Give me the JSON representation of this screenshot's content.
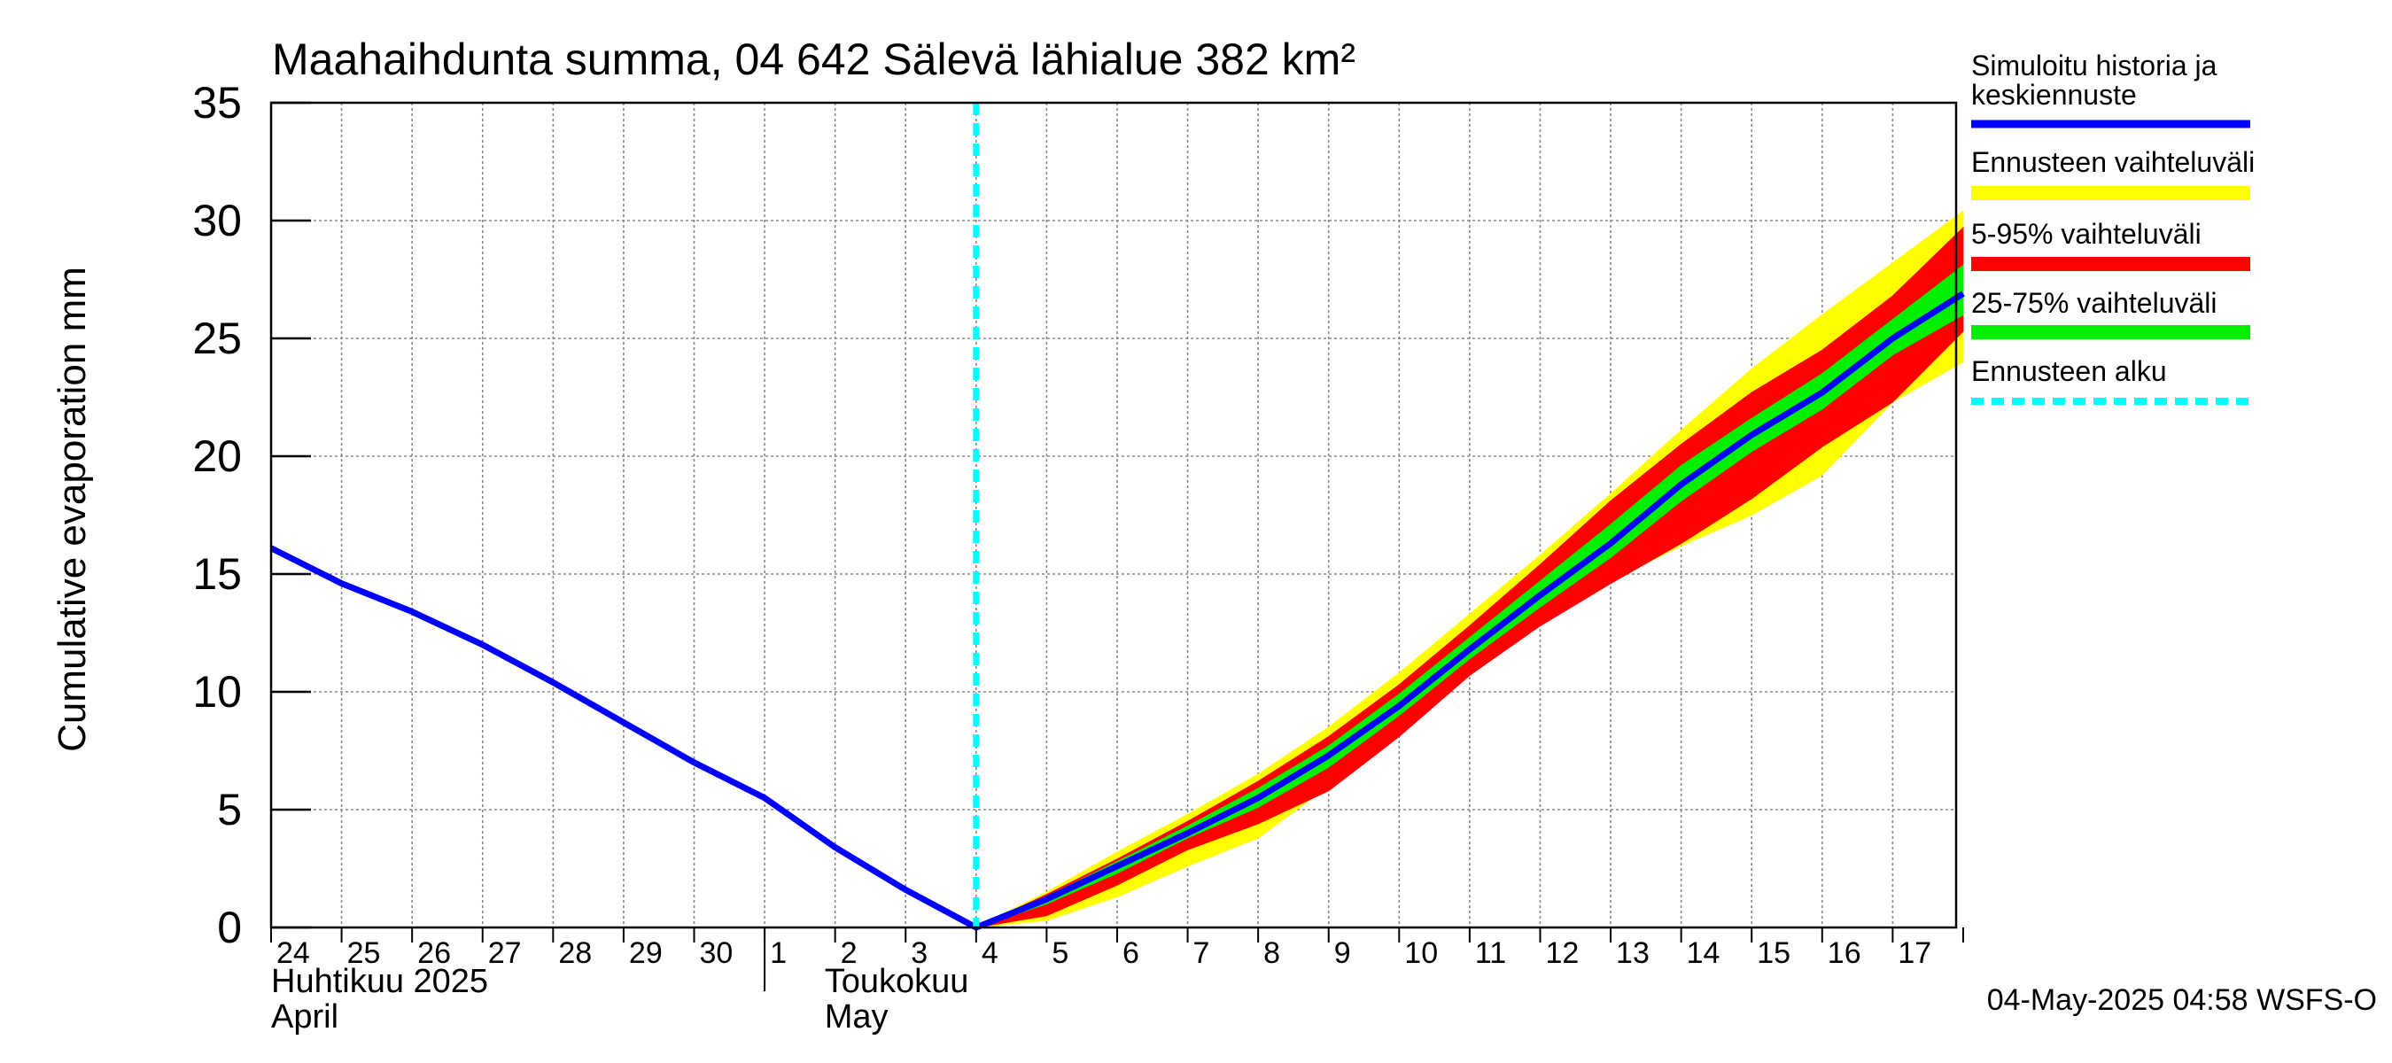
{
  "chart_data": {
    "type": "area",
    "title": "Maahaihdunta summa, 04 642 Sälevä lähialue 382 km²",
    "ylabel": "Cumulative evaporation   mm",
    "ylim": [
      0,
      35
    ],
    "yticks": [
      0,
      5,
      10,
      15,
      20,
      25,
      30,
      35
    ],
    "x_range": [
      "2025-04-24",
      "2025-05-17"
    ],
    "x_tick_labels": [
      "24",
      "25",
      "26",
      "27",
      "28",
      "29",
      "30",
      "1",
      "2",
      "3",
      "4",
      "5",
      "6",
      "7",
      "8",
      "9",
      "10",
      "11",
      "12",
      "13",
      "14",
      "15",
      "16",
      "17"
    ],
    "month_labels": [
      {
        "line1": "Huhtikuu  2025",
        "line2": "April"
      },
      {
        "line1": "Toukokuu",
        "line2": "May"
      }
    ],
    "grid": true,
    "forecast_start": "2025-05-04",
    "legend_position": "right",
    "legend": [
      {
        "label": "Simuloitu historia ja\nkeskiennuste",
        "color": "#0000ff",
        "style": "solid"
      },
      {
        "label": "Ennusteen vaihteluväli",
        "color": "#ffff00",
        "style": "solid"
      },
      {
        "label": "5-95% vaihteluväli",
        "color": "#ff0000",
        "style": "solid"
      },
      {
        "label": "25-75% vaihteluväli",
        "color": "#00ee00",
        "style": "solid"
      },
      {
        "label": "Ennusteen alku",
        "color": "#00ffff",
        "style": "dashed"
      }
    ],
    "x": [
      "2025-04-24",
      "2025-04-25",
      "2025-04-26",
      "2025-04-27",
      "2025-04-28",
      "2025-04-29",
      "2025-04-30",
      "2025-05-01",
      "2025-05-02",
      "2025-05-03",
      "2025-05-04",
      "2025-05-05",
      "2025-05-06",
      "2025-05-07",
      "2025-05-08",
      "2025-05-09",
      "2025-05-10",
      "2025-05-11",
      "2025-05-12",
      "2025-05-13",
      "2025-05-14",
      "2025-05-15",
      "2025-05-16",
      "2025-05-17",
      "2025-05-18"
    ],
    "series": [
      {
        "name": "Simuloitu historia ja keskiennuste",
        "values": [
          16.1,
          14.6,
          13.4,
          12.0,
          10.4,
          8.7,
          7.0,
          5.5,
          3.4,
          1.6,
          0.0,
          1.2,
          2.6,
          4.0,
          5.5,
          7.3,
          9.4,
          11.8,
          14.1,
          16.3,
          18.8,
          20.9,
          22.7,
          25.0,
          26.9
        ]
      }
    ],
    "bands": [
      {
        "name": "Ennusteen vaihteluväli",
        "color": "#ffff00",
        "lower": [
          0.0,
          0.3,
          1.3,
          2.6,
          3.8,
          6.0,
          8.5,
          10.8,
          13.0,
          14.7,
          16.2,
          17.5,
          19.2,
          22.3,
          24.0
        ],
        "upper": [
          0.0,
          1.5,
          3.2,
          4.8,
          6.5,
          8.5,
          10.8,
          13.3,
          15.8,
          18.4,
          21.1,
          23.7,
          26.0,
          28.2,
          30.4
        ]
      },
      {
        "name": "5-95% vaihteluväli",
        "color": "#ff0000",
        "lower": [
          0.0,
          0.5,
          1.8,
          3.3,
          4.4,
          5.8,
          8.1,
          10.7,
          12.8,
          14.6,
          16.3,
          18.2,
          20.4,
          22.3,
          25.3
        ],
        "upper": [
          0.0,
          1.4,
          2.9,
          4.5,
          6.2,
          8.1,
          10.3,
          12.8,
          15.4,
          18.1,
          20.5,
          22.7,
          24.5,
          26.8,
          29.7
        ]
      },
      {
        "name": "25-75% vaihteluväli",
        "color": "#00ee00",
        "lower": [
          0.0,
          1.0,
          2.3,
          3.8,
          5.1,
          6.8,
          9.0,
          11.4,
          13.6,
          15.7,
          18.1,
          20.2,
          22.0,
          24.3,
          26.0
        ],
        "upper": [
          0.0,
          1.3,
          2.8,
          4.3,
          5.9,
          7.7,
          9.9,
          12.3,
          14.7,
          17.1,
          19.6,
          21.6,
          23.5,
          25.8,
          28.1
        ]
      }
    ]
  },
  "footer": {
    "timestamp": "04-May-2025 04:58 WSFS-O"
  }
}
